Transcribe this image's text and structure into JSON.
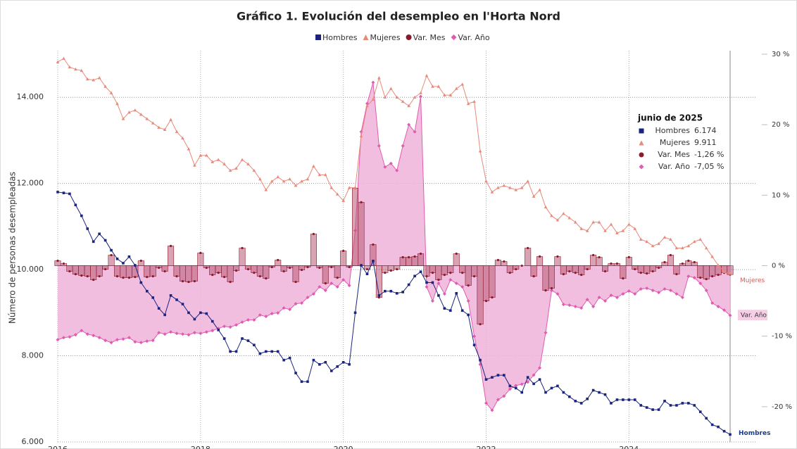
{
  "chart_data": {
    "type": "line",
    "title": "Gráfico 1. Evolución del desempleo en l'Horta Nord",
    "y_label": "Número de personas desempleadas",
    "x": [
      "2016-01",
      "2016-02",
      "2016-03",
      "2016-04",
      "2016-05",
      "2016-06",
      "2016-07",
      "2016-08",
      "2016-09",
      "2016-10",
      "2016-11",
      "2016-12",
      "2017-01",
      "2017-02",
      "2017-03",
      "2017-04",
      "2017-05",
      "2017-06",
      "2017-07",
      "2017-08",
      "2017-09",
      "2017-10",
      "2017-11",
      "2017-12",
      "2018-01",
      "2018-02",
      "2018-03",
      "2018-04",
      "2018-05",
      "2018-06",
      "2018-07",
      "2018-08",
      "2018-09",
      "2018-10",
      "2018-11",
      "2018-12",
      "2019-01",
      "2019-02",
      "2019-03",
      "2019-04",
      "2019-05",
      "2019-06",
      "2019-07",
      "2019-08",
      "2019-09",
      "2019-10",
      "2019-11",
      "2019-12",
      "2020-01",
      "2020-02",
      "2020-03",
      "2020-04",
      "2020-05",
      "2020-06",
      "2020-07",
      "2020-08",
      "2020-09",
      "2020-10",
      "2020-11",
      "2020-12",
      "2021-01",
      "2021-02",
      "2021-03",
      "2021-04",
      "2021-05",
      "2021-06",
      "2021-07",
      "2021-08",
      "2021-09",
      "2021-10",
      "2021-11",
      "2021-12",
      "2022-01",
      "2022-02",
      "2022-03",
      "2022-04",
      "2022-05",
      "2022-06",
      "2022-07",
      "2022-08",
      "2022-09",
      "2022-10",
      "2022-11",
      "2022-12",
      "2023-01",
      "2023-02",
      "2023-03",
      "2023-04",
      "2023-05",
      "2023-06",
      "2023-07",
      "2023-08",
      "2023-09",
      "2023-10",
      "2023-11",
      "2023-12",
      "2024-01",
      "2024-02",
      "2024-03",
      "2024-04",
      "2024-05",
      "2024-06",
      "2024-07",
      "2024-08",
      "2024-09",
      "2024-10",
      "2024-11",
      "2024-12",
      "2025-01",
      "2025-02",
      "2025-03",
      "2025-04",
      "2025-05",
      "2025-06"
    ],
    "xlim": [
      "2016-01",
      "2025-06"
    ],
    "xticks": [
      {
        "value": "2016-01",
        "label": "2016"
      },
      {
        "value": "2018-01",
        "label": "2018"
      },
      {
        "value": "2020-01",
        "label": "2020"
      },
      {
        "value": "2022-01",
        "label": "2022"
      },
      {
        "value": "2024-01",
        "label": "2024"
      }
    ],
    "ylim": [
      6000,
      15000
    ],
    "yticks": [
      {
        "value": 6000,
        "label": "6.000"
      },
      {
        "value": 8000,
        "label": "8.000"
      },
      {
        "value": 10000,
        "label": "10.000"
      },
      {
        "value": 12000,
        "label": "12.000"
      },
      {
        "value": 14000,
        "label": "14.000"
      }
    ],
    "y2lim": [
      -25,
      30
    ],
    "y2ticks": [
      {
        "value": -20,
        "label": "-20 %"
      },
      {
        "value": -10,
        "label": "-10 %"
      },
      {
        "value": 0,
        "label": "0 %"
      },
      {
        "value": 10,
        "label": "10 %"
      },
      {
        "value": 20,
        "label": "20 %"
      },
      {
        "value": 30,
        "label": "30 %"
      }
    ],
    "grid": true,
    "series": [
      {
        "name": "Hombres",
        "color": "#1a237e",
        "marker": "square",
        "values": [
          11800,
          11780,
          11760,
          11500,
          11250,
          10950,
          10650,
          10830,
          10680,
          10450,
          10250,
          10150,
          10300,
          10100,
          9700,
          9500,
          9350,
          9100,
          8950,
          9400,
          9300,
          9200,
          9000,
          8850,
          9000,
          8980,
          8800,
          8600,
          8400,
          8100,
          8100,
          8400,
          8350,
          8250,
          8050,
          8100,
          8100,
          8100,
          7900,
          7950,
          7600,
          7400,
          7400,
          7900,
          7800,
          7850,
          7650,
          7750,
          7850,
          7800,
          9000,
          10100,
          9900,
          10200,
          9400,
          9500,
          9500,
          9450,
          9480,
          9650,
          9850,
          9950,
          9700,
          9700,
          9400,
          9100,
          9050,
          9450,
          9050,
          8950,
          8250,
          7900,
          7450,
          7500,
          7550,
          7550,
          7300,
          7250,
          7150,
          7500,
          7350,
          7450,
          7150,
          7250,
          7300,
          7150,
          7050,
          6950,
          6900,
          7000,
          7200,
          7150,
          7100,
          6900,
          6980,
          6980,
          6980,
          6980,
          6850,
          6800,
          6750,
          6750,
          6950,
          6850,
          6850,
          6900,
          6900,
          6850,
          6700,
          6550,
          6400,
          6350,
          6250,
          6174
        ]
      },
      {
        "name": "Mujeres",
        "color": "#e8897a",
        "marker": "triangle",
        "values": [
          14820,
          14900,
          14700,
          14650,
          14620,
          14420,
          14400,
          14450,
          14250,
          14100,
          13850,
          13500,
          13650,
          13700,
          13600,
          13500,
          13400,
          13300,
          13250,
          13480,
          13200,
          13050,
          12800,
          12420,
          12650,
          12650,
          12500,
          12550,
          12450,
          12300,
          12350,
          12550,
          12450,
          12300,
          12100,
          11850,
          12050,
          12150,
          12050,
          12100,
          11950,
          12050,
          12100,
          12400,
          12200,
          12200,
          11900,
          11750,
          11600,
          11900,
          11900,
          13100,
          13800,
          13950,
          14450,
          14000,
          14200,
          14000,
          13900,
          13800,
          14000,
          14100,
          14500,
          14250,
          14250,
          14050,
          14050,
          14200,
          14300,
          13850,
          13900,
          12750,
          12050,
          11800,
          11900,
          11950,
          11900,
          11850,
          11900,
          12050,
          11700,
          11850,
          11450,
          11250,
          11150,
          11300,
          11200,
          11100,
          10950,
          10900,
          11100,
          11100,
          10900,
          11050,
          10850,
          10900,
          11050,
          10950,
          10700,
          10650,
          10550,
          10600,
          10750,
          10700,
          10500,
          10500,
          10550,
          10650,
          10700,
          10500,
          10300,
          10100,
          9950,
          9911
        ]
      },
      {
        "name": "Var. Mes",
        "color": "#8b1a2b",
        "marker": "circle",
        "axis": "y2",
        "type": "step",
        "values": [
          0.7,
          0.3,
          -0.8,
          -1.2,
          -1.4,
          -1.5,
          -2.0,
          -1.5,
          -0.5,
          1.5,
          -1.5,
          -1.7,
          -1.7,
          -1.6,
          0.7,
          -1.6,
          -1.5,
          -0.3,
          -0.8,
          2.8,
          -1.5,
          -2.2,
          -2.3,
          -2.2,
          1.8,
          -0.3,
          -1.3,
          -1.0,
          -1.6,
          -2.3,
          -0.7,
          2.5,
          -0.5,
          -1.0,
          -1.5,
          -1.8,
          -0.2,
          0.8,
          -0.8,
          -0.3,
          -2.3,
          -0.6,
          -0.2,
          4.5,
          -0.3,
          -2.5,
          -0.2,
          -1.7,
          2.1,
          -0.2,
          11.0,
          9.0,
          -0.5,
          3.0,
          -4.5,
          -1.0,
          -0.7,
          -0.5,
          1.2,
          1.2,
          1.3,
          1.7,
          -1.5,
          -1.0,
          -2.0,
          -1.3,
          -1.0,
          1.7,
          -1.0,
          -2.8,
          -1.5,
          -8.3,
          -5.0,
          -4.5,
          0.8,
          0.6,
          -1.0,
          -0.5,
          0.0,
          2.5,
          -1.5,
          1.3,
          -3.5,
          -3.2,
          1.3,
          -1.2,
          -0.8,
          -1.0,
          -1.3,
          -0.5,
          1.5,
          1.2,
          -0.8,
          0.3,
          0.3,
          -1.8,
          1.2,
          -0.5,
          -1.0,
          -1.1,
          -0.8,
          -0.3,
          0.5,
          1.5,
          -1.2,
          0.3,
          0.7,
          0.5,
          -1.7,
          -1.9,
          -1.5,
          -1.3,
          -1.0,
          -1.26
        ]
      },
      {
        "name": "Var. Año",
        "color": "#e05cb0",
        "marker": "diamond",
        "axis": "y2",
        "type": "area",
        "values": [
          -10.5,
          -10.2,
          -10.1,
          -9.8,
          -9.2,
          -9.7,
          -9.9,
          -10.2,
          -10.6,
          -10.9,
          -10.5,
          -10.4,
          -10.2,
          -10.8,
          -10.9,
          -10.7,
          -10.6,
          -9.5,
          -9.7,
          -9.4,
          -9.6,
          -9.7,
          -9.8,
          -9.5,
          -9.6,
          -9.4,
          -9.2,
          -8.9,
          -8.6,
          -8.7,
          -8.4,
          -8.0,
          -7.7,
          -7.7,
          -7.0,
          -7.2,
          -6.8,
          -6.7,
          -6.0,
          -6.2,
          -5.4,
          -5.3,
          -4.5,
          -4.0,
          -3.0,
          -3.5,
          -2.5,
          -3.0,
          -2.0,
          -2.8,
          5.0,
          19.0,
          23.0,
          26.0,
          17.0,
          14.0,
          14.5,
          13.5,
          17.0,
          20.0,
          19.0,
          24.0,
          -3.0,
          -5.0,
          -2.5,
          -4.0,
          -2.0,
          -2.5,
          -3.0,
          -5.0,
          -10.0,
          -14.0,
          -19.5,
          -20.5,
          -19.0,
          -18.5,
          -17.5,
          -17.0,
          -16.8,
          -16.5,
          -15.5,
          -14.5,
          -9.5,
          -3.5,
          -4.0,
          -5.5,
          -5.6,
          -5.8,
          -6.0,
          -4.8,
          -5.8,
          -4.5,
          -5.0,
          -4.2,
          -4.5,
          -4.0,
          -3.6,
          -4.0,
          -3.3,
          -3.2,
          -3.5,
          -3.8,
          -3.3,
          -3.5,
          -4.0,
          -4.5,
          -1.5,
          -1.7,
          -2.5,
          -3.5,
          -5.3,
          -5.8,
          -6.3,
          -7.05
        ]
      }
    ],
    "annotation": {
      "title": "junio de 2025",
      "labels": [
        "6.174",
        "9.911",
        "-1,26 %",
        "-7,05 %"
      ]
    }
  }
}
